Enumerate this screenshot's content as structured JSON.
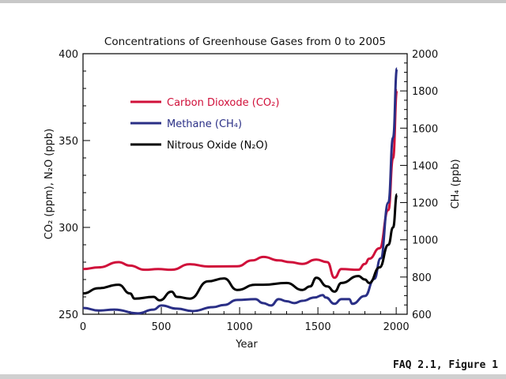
{
  "chart_data": {
    "type": "line",
    "title": "Concentrations of Greenhouse Gases from 0 to 2005",
    "xlabel": "Year",
    "ylabel_left": "CO₂ (ppm), N₂O (ppb)",
    "ylabel_right": "CH₄ (ppb)",
    "xlim": [
      0,
      2070
    ],
    "ylim_left": [
      250,
      400
    ],
    "ylim_right": [
      600,
      2000
    ],
    "x_ticks": [
      0,
      500,
      1000,
      1500,
      2000
    ],
    "y_ticks_left": [
      250,
      300,
      350,
      400
    ],
    "y_ticks_right": [
      600,
      800,
      1000,
      1200,
      1400,
      1600,
      1800,
      2000
    ],
    "grid": false,
    "legend_placement": "top-left",
    "series": [
      {
        "name": "Carbon Dioxode (CO₂)",
        "axis": "left",
        "color": "#d0103a",
        "x": [
          0,
          100,
          227,
          300,
          394,
          480,
          565,
          682,
          800,
          985,
          1080,
          1152,
          1250,
          1322,
          1400,
          1490,
          1560,
          1606,
          1650,
          1758,
          1800,
          1828,
          1894,
          1950,
          1980,
          2005
        ],
        "y": [
          276,
          277,
          280,
          278,
          275.6,
          276,
          275.6,
          278.8,
          277.5,
          277.6,
          281,
          283,
          281,
          280,
          279,
          281.5,
          280,
          271,
          276,
          275.6,
          279,
          282,
          288,
          310,
          340,
          379
        ]
      },
      {
        "name": "Methane (CH₄)",
        "axis": "right",
        "color": "#2a2f86",
        "x": [
          0,
          100,
          200,
          350,
          450,
          500,
          600,
          700,
          830,
          900,
          985,
          1100,
          1150,
          1200,
          1250,
          1300,
          1350,
          1400,
          1480,
          1530,
          1550,
          1606,
          1650,
          1700,
          1720,
          1800,
          1860,
          1900,
          1950,
          1980,
          2005
        ],
        "y": [
          634,
          620,
          625,
          605,
          625,
          647,
          630,
          617,
          638,
          650,
          677,
          681,
          660,
          647,
          681,
          670,
          660,
          672,
          690,
          703,
          690,
          656,
          681,
          681,
          656,
          698,
          790,
          900,
          1200,
          1550,
          1920
        ]
      },
      {
        "name": "Nitrous Oxide (N₂O)",
        "axis": "left",
        "color": "#000000",
        "x": [
          0,
          100,
          227,
          300,
          330,
          450,
          490,
          565,
          600,
          682,
          800,
          900,
          985,
          1100,
          1152,
          1300,
          1400,
          1450,
          1490,
          1560,
          1606,
          1650,
          1758,
          1800,
          1828,
          1894,
          1950,
          1980,
          2005
        ],
        "y": [
          262,
          265,
          267,
          262,
          259,
          260,
          258,
          263,
          260,
          259,
          269,
          270.6,
          264,
          267,
          267,
          268,
          264,
          266,
          271,
          266,
          263,
          268,
          272,
          270,
          268,
          277,
          290,
          300,
          319
        ]
      }
    ]
  },
  "caption": "FAQ 2.1, Figure 1"
}
